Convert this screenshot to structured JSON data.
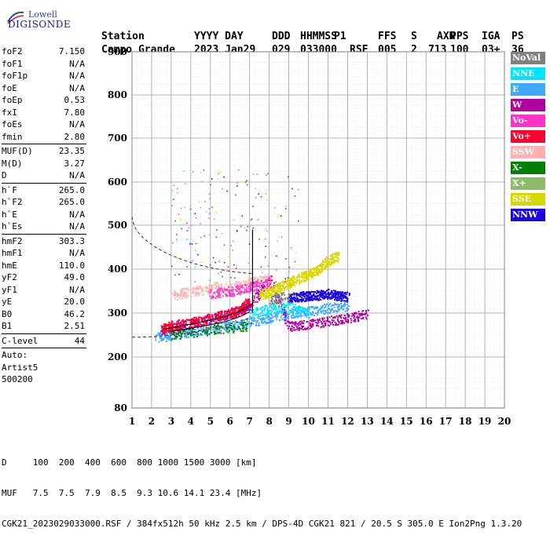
{
  "logo": {
    "brand_top": "Lowell",
    "brand_bottom": "DIGISONDE"
  },
  "header": {
    "columns": [
      {
        "label": "Station",
        "value": "Campo Grande"
      },
      {
        "label": "YYYY DAY",
        "value": "2023 Jan29"
      },
      {
        "label": "DDD",
        "value": "029"
      },
      {
        "label": "HHMMSS",
        "value": "033000"
      },
      {
        "label": "P1",
        "value": "RSF"
      },
      {
        "label": "FFS",
        "value": "005"
      },
      {
        "label": "S",
        "value": "2"
      },
      {
        "label": "AXN",
        "value": "713"
      },
      {
        "label": "PPS",
        "value": "100"
      },
      {
        "label": "IGA",
        "value": "03+"
      },
      {
        "label": "PS",
        "value": "36"
      }
    ]
  },
  "params": [
    {
      "group": [
        {
          "name": "foF2",
          "value": "7.150"
        },
        {
          "name": "foF1",
          "value": "N/A"
        },
        {
          "name": "foF1p",
          "value": "N/A"
        },
        {
          "name": "foE",
          "value": "N/A"
        },
        {
          "name": "foEp",
          "value": "0.53"
        },
        {
          "name": "fxI",
          "value": "7.80"
        },
        {
          "name": "foEs",
          "value": "N/A"
        },
        {
          "name": "fmin",
          "value": "2.80"
        }
      ]
    },
    {
      "group": [
        {
          "name": "MUF(D)",
          "value": "23.35"
        },
        {
          "name": "M(D)",
          "value": "3.27"
        },
        {
          "name": "D",
          "value": "N/A"
        }
      ]
    },
    {
      "group": [
        {
          "name": "h`F",
          "value": "265.0"
        },
        {
          "name": "h`F2",
          "value": "265.0"
        },
        {
          "name": "h`E",
          "value": "N/A"
        },
        {
          "name": "h`Es",
          "value": "N/A"
        }
      ]
    },
    {
      "group": [
        {
          "name": "hmF2",
          "value": "303.3"
        },
        {
          "name": "hmF1",
          "value": "N/A"
        },
        {
          "name": "hmE",
          "value": "110.0"
        },
        {
          "name": "yF2",
          "value": "49.0"
        },
        {
          "name": "yF1",
          "value": "N/A"
        },
        {
          "name": "yE",
          "value": "20.0"
        },
        {
          "name": "B0",
          "value": "46.2"
        },
        {
          "name": "B1",
          "value": "2.51"
        }
      ]
    },
    {
      "group": [
        {
          "name": "C-level",
          "value": "44"
        }
      ]
    },
    {
      "group": [
        {
          "name": "Auto:",
          "value": ""
        },
        {
          "name": "Artist5",
          "value": ""
        },
        {
          "name": "500200",
          "value": ""
        }
      ]
    }
  ],
  "legend": [
    {
      "label": "NoVal",
      "color": "#808080"
    },
    {
      "label": "NNE",
      "color": "#00e5ff"
    },
    {
      "label": "E",
      "color": "#3fa9ff"
    },
    {
      "label": "W",
      "color": "#b000a0"
    },
    {
      "label": "Vo-",
      "color": "#ff33cc"
    },
    {
      "label": "Vo+",
      "color": "#ff0033"
    },
    {
      "label": "SSW",
      "color": "#ffb0b0"
    },
    {
      "label": "X-",
      "color": "#008000"
    },
    {
      "label": "X+",
      "color": "#8dbb6a"
    },
    {
      "label": "SSE",
      "color": "#d8d800"
    },
    {
      "label": "NNW",
      "color": "#1a00e0"
    }
  ],
  "footer": {
    "line1": "D     100  200  400  600  800 1000 1500 3000 [km]",
    "line2": "MUF   7.5  7.5  7.9  8.5  9.3 10.6 14.1 23.4 [MHz]",
    "line3": "CGK21_2023029033000.RSF / 384fx512h 50 kHz 2.5 km / DPS-4D CGK21 821 / 20.5 S 305.0 E Ion2Png 1.3.20"
  },
  "chart_data": {
    "type": "scatter",
    "xlim": [
      1,
      20
    ],
    "ylim": [
      80,
      900
    ],
    "x_ticks": [
      "1",
      "2",
      "3",
      "4",
      "5",
      "6",
      "7",
      "8",
      "9",
      "10",
      "11",
      "12",
      "13",
      "14",
      "15",
      "16",
      "17",
      "18",
      "19",
      "20"
    ],
    "y_ticks": [
      "80",
      "200",
      "300",
      "400",
      "500",
      "600",
      "700",
      "800",
      "900"
    ],
    "grid": true,
    "legend_placement": "right",
    "series": [
      {
        "name": "E",
        "color": "#3fa9ff",
        "points": [
          [
            2.2,
            245
          ],
          [
            3,
            250
          ],
          [
            4,
            258
          ],
          [
            5,
            265
          ],
          [
            6,
            272
          ],
          [
            7,
            280
          ],
          [
            8,
            290
          ],
          [
            9,
            300
          ],
          [
            10,
            305
          ],
          [
            11,
            312
          ],
          [
            12,
            318
          ]
        ]
      },
      {
        "name": "W",
        "color": "#b000a0",
        "points": [
          [
            2.5,
            262
          ],
          [
            3.5,
            272
          ],
          [
            4.5,
            282
          ],
          [
            5.5,
            292
          ],
          [
            6.5,
            305
          ],
          [
            7,
            320
          ],
          [
            8,
            380
          ],
          [
            9,
            270
          ],
          [
            10,
            275
          ],
          [
            11,
            282
          ],
          [
            12,
            290
          ],
          [
            13,
            298
          ]
        ]
      },
      {
        "name": "NNW",
        "color": "#1a00e0",
        "points": [
          [
            9,
            335
          ],
          [
            9.5,
            338
          ],
          [
            10,
            340
          ],
          [
            10.5,
            342
          ],
          [
            11,
            345
          ],
          [
            11.5,
            340
          ],
          [
            12,
            338
          ]
        ]
      },
      {
        "name": "SSE",
        "color": "#d8d800",
        "points": [
          [
            7.5,
            340
          ],
          [
            8,
            350
          ],
          [
            8.5,
            360
          ],
          [
            9,
            370
          ],
          [
            9.5,
            380
          ],
          [
            10,
            390
          ],
          [
            10.5,
            400
          ],
          [
            11,
            420
          ],
          [
            11.5,
            430
          ]
        ]
      },
      {
        "name": "Vo+",
        "color": "#ff0033",
        "points": [
          [
            2.5,
            265
          ],
          [
            3,
            272
          ],
          [
            4,
            280
          ],
          [
            5,
            290
          ],
          [
            6,
            300
          ],
          [
            6.5,
            310
          ],
          [
            7,
            330
          ]
        ]
      },
      {
        "name": "SSW",
        "color": "#ffb0b0",
        "points": [
          [
            3,
            340
          ],
          [
            4,
            350
          ],
          [
            5,
            355
          ],
          [
            6,
            360
          ],
          [
            7,
            370
          ],
          [
            8,
            380
          ]
        ]
      },
      {
        "name": "Vo-",
        "color": "#ff33cc",
        "points": [
          [
            5,
            345
          ],
          [
            6,
            350
          ],
          [
            7,
            360
          ],
          [
            8,
            370
          ]
        ]
      },
      {
        "name": "NNE",
        "color": "#00e5ff",
        "points": [
          [
            7,
            300
          ],
          [
            8,
            310
          ],
          [
            9,
            315
          ],
          [
            10,
            300
          ]
        ]
      },
      {
        "name": "X-",
        "color": "#008000",
        "points": [
          [
            3,
            250
          ],
          [
            5,
            262
          ],
          [
            7,
            272
          ]
        ]
      },
      {
        "name": "NoVal",
        "color": "#808080",
        "points": [
          [
            8,
            330
          ],
          [
            9,
            340
          ]
        ]
      }
    ]
  }
}
